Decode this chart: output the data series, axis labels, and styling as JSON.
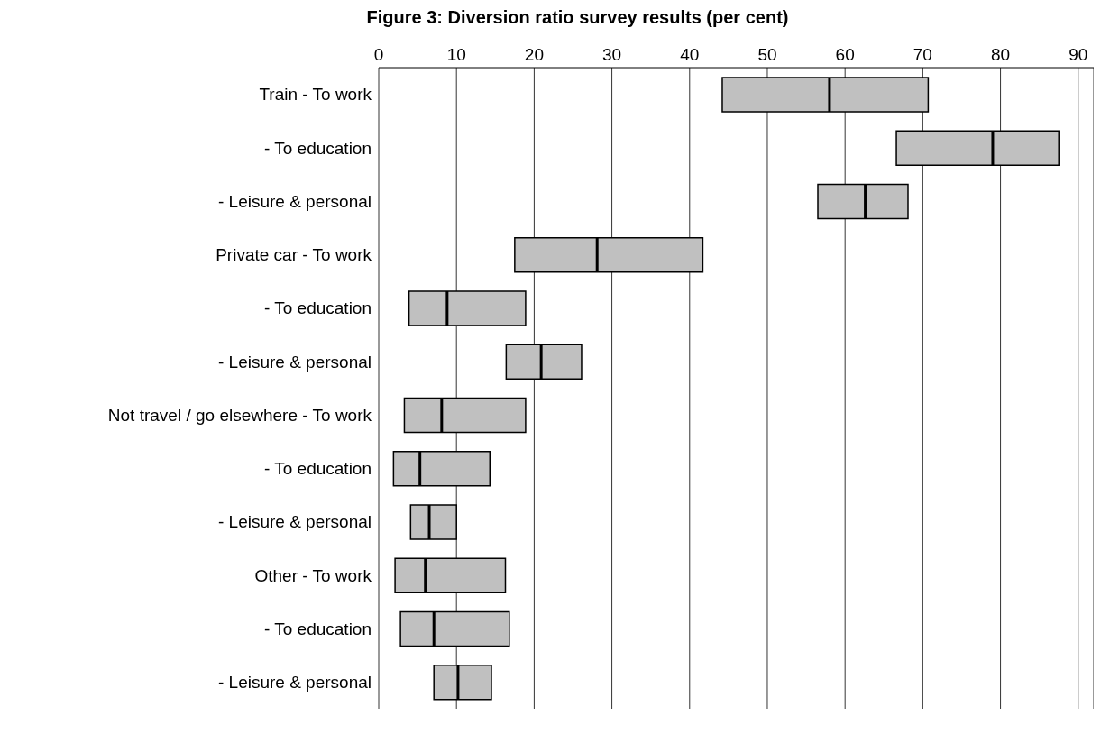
{
  "chart_data": {
    "type": "box",
    "orientation": "horizontal",
    "title": "Figure 3: Diversion ratio survey results (per cent)",
    "categories": [
      "Train - To work",
      "- To education",
      "- Leisure & personal",
      "Private car - To work",
      "- To education",
      "- Leisure & personal",
      "Not travel / go elsewhere - To work",
      "- To education",
      "- Leisure & personal",
      "Other - To work",
      "- To education",
      "- Leisure & personal"
    ],
    "boxes": [
      {
        "low": 44.2,
        "q1": 44.2,
        "median": 58.0,
        "q3": 70.7,
        "high": 70.7
      },
      {
        "low": 66.6,
        "q1": 66.6,
        "median": 79.0,
        "q3": 87.5,
        "high": 87.5
      },
      {
        "low": 56.5,
        "q1": 56.5,
        "median": 62.6,
        "q3": 68.1,
        "high": 68.1
      },
      {
        "low": 17.5,
        "q1": 17.5,
        "median": 28.1,
        "q3": 41.7,
        "high": 41.7
      },
      {
        "low": 3.9,
        "q1": 3.9,
        "median": 8.8,
        "q3": 18.9,
        "high": 18.9
      },
      {
        "low": 16.4,
        "q1": 16.4,
        "median": 20.9,
        "q3": 26.1,
        "high": 26.1
      },
      {
        "low": 3.3,
        "q1": 3.3,
        "median": 8.1,
        "q3": 18.9,
        "high": 18.9
      },
      {
        "low": 1.9,
        "q1": 1.9,
        "median": 5.3,
        "q3": 14.3,
        "high": 14.3
      },
      {
        "low": 4.1,
        "q1": 4.1,
        "median": 6.5,
        "q3": 10.0,
        "high": 10.0
      },
      {
        "low": 2.1,
        "q1": 2.1,
        "median": 6.0,
        "q3": 16.3,
        "high": 16.3
      },
      {
        "low": 2.8,
        "q1": 2.8,
        "median": 7.1,
        "q3": 16.8,
        "high": 16.8
      },
      {
        "low": 7.1,
        "q1": 7.1,
        "median": 10.2,
        "q3": 14.5,
        "high": 14.5
      }
    ],
    "color": "#c0c0c0",
    "xlim": [
      0,
      92
    ],
    "xticks": [
      0,
      10,
      20,
      30,
      40,
      50,
      60,
      70,
      80,
      90
    ],
    "grid": "x"
  }
}
